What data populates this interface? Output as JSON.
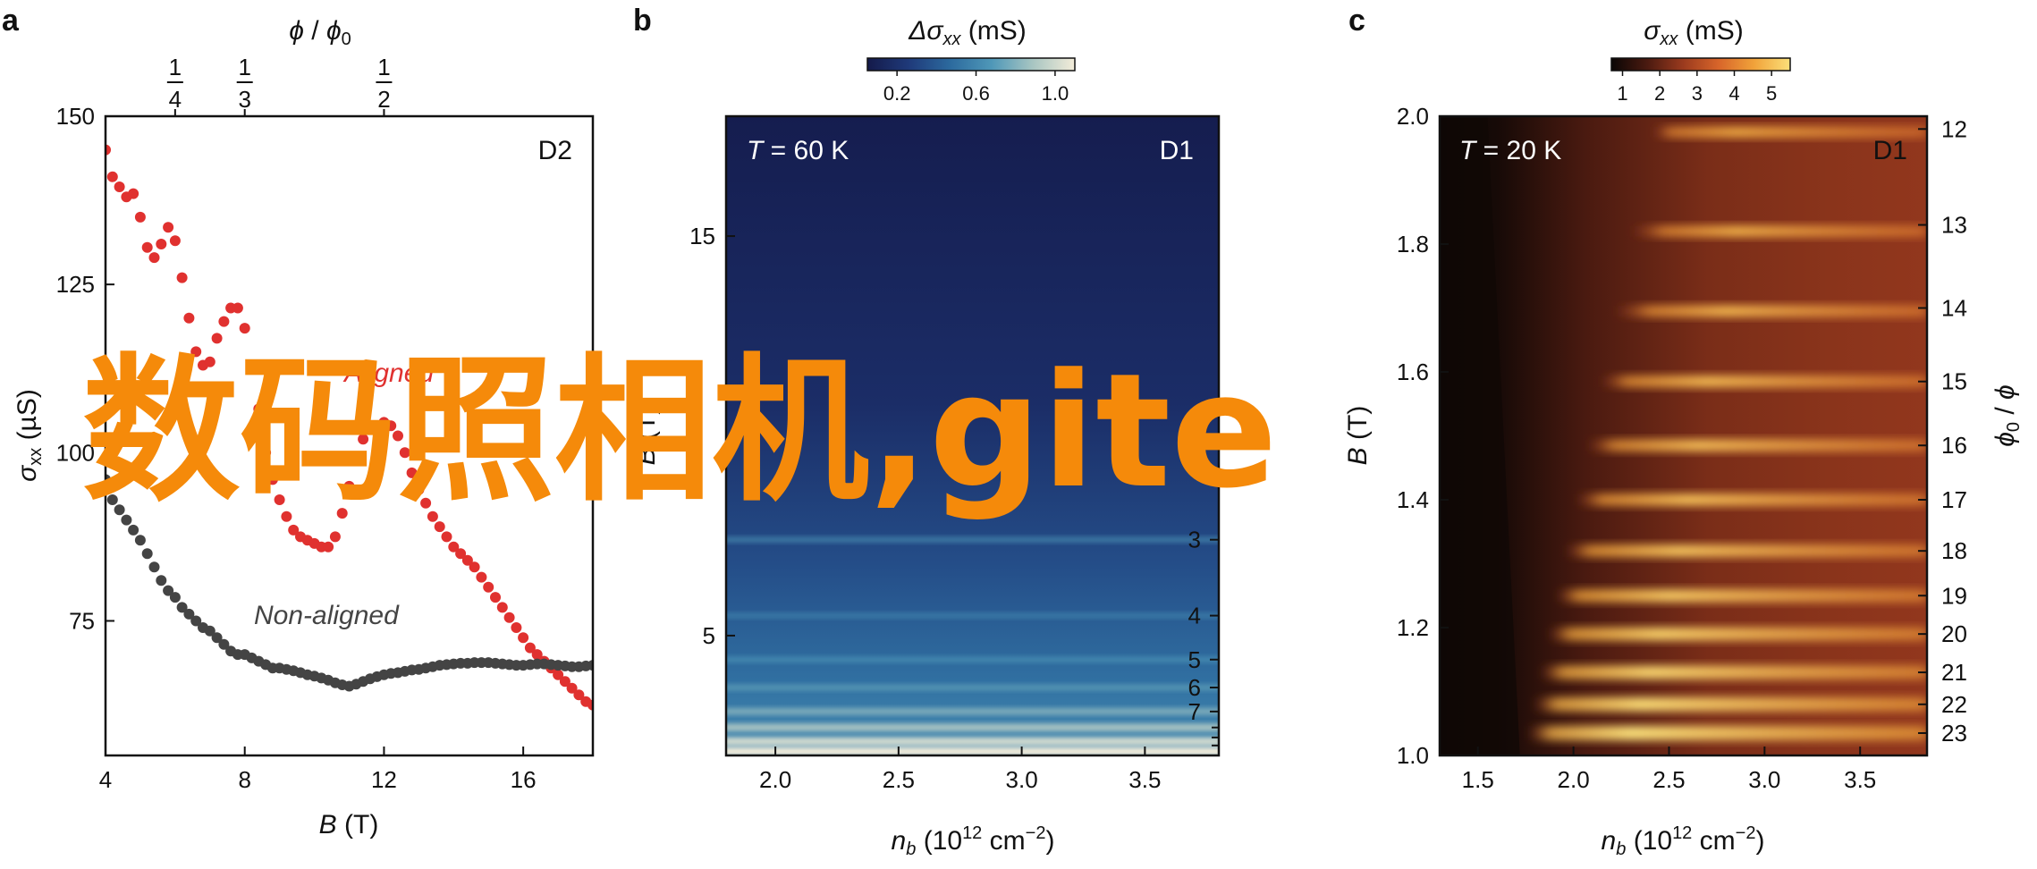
{
  "chart_data": [
    {
      "panel": "a",
      "type": "scatter",
      "xlabel": "B (T)",
      "ylabel": "σxx (µS)",
      "top_axis_label": "ϕ / ϕ0",
      "xlim": [
        4,
        18
      ],
      "ylim": [
        55,
        150
      ],
      "x_ticks": [
        4,
        8,
        12,
        16
      ],
      "y_ticks": [
        75,
        100,
        125,
        150
      ],
      "top_ticks": [
        {
          "label": "1/4",
          "num": "1",
          "den": "4",
          "B": 6
        },
        {
          "label": "1/3",
          "num": "1",
          "den": "3",
          "B": 8
        },
        {
          "label": "1/2",
          "num": "1",
          "den": "2",
          "B": 12
        }
      ],
      "corner_label": "D2",
      "series": [
        {
          "name": "Aligned",
          "color": "#e0312f",
          "points": [
            [
              4.0,
              145.0
            ],
            [
              4.2,
              141.0
            ],
            [
              4.4,
              139.5
            ],
            [
              4.6,
              138.0
            ],
            [
              4.8,
              138.5
            ],
            [
              5.0,
              135.0
            ],
            [
              5.2,
              130.5
            ],
            [
              5.4,
              129.0
            ],
            [
              5.6,
              131.0
            ],
            [
              5.8,
              133.5
            ],
            [
              6.0,
              131.5
            ],
            [
              6.2,
              126.0
            ],
            [
              6.4,
              120.0
            ],
            [
              6.6,
              115.0
            ],
            [
              6.8,
              113.0
            ],
            [
              7.0,
              113.5
            ],
            [
              7.2,
              117.0
            ],
            [
              7.4,
              119.5
            ],
            [
              7.6,
              121.5
            ],
            [
              7.8,
              121.5
            ],
            [
              8.0,
              118.5
            ],
            [
              8.2,
              113.0
            ],
            [
              8.4,
              106.5
            ],
            [
              8.6,
              100.0
            ],
            [
              8.8,
              96.0
            ],
            [
              9.0,
              93.0
            ],
            [
              9.2,
              90.5
            ],
            [
              9.4,
              88.5
            ],
            [
              9.6,
              87.5
            ],
            [
              9.8,
              87.0
            ],
            [
              10.0,
              86.5
            ],
            [
              10.2,
              86.0
            ],
            [
              10.4,
              86.0
            ],
            [
              10.6,
              87.5
            ],
            [
              10.8,
              91.0
            ],
            [
              11.0,
              95.0
            ],
            [
              11.2,
              99.0
            ],
            [
              11.4,
              102.0
            ],
            [
              11.6,
              103.5
            ],
            [
              11.8,
              104.0
            ],
            [
              12.0,
              104.5
            ],
            [
              12.2,
              104.0
            ],
            [
              12.4,
              102.5
            ],
            [
              12.6,
              100.0
            ],
            [
              12.8,
              97.0
            ],
            [
              13.0,
              94.5
            ],
            [
              13.2,
              92.5
            ],
            [
              13.4,
              90.5
            ],
            [
              13.6,
              89.0
            ],
            [
              13.8,
              87.5
            ],
            [
              14.0,
              86.0
            ],
            [
              14.2,
              85.0
            ],
            [
              14.4,
              84.0
            ],
            [
              14.6,
              83.0
            ],
            [
              14.8,
              81.5
            ],
            [
              15.0,
              80.0
            ],
            [
              15.2,
              78.5
            ],
            [
              15.4,
              77.0
            ],
            [
              15.6,
              75.5
            ],
            [
              15.8,
              74.0
            ],
            [
              16.0,
              72.5
            ],
            [
              16.2,
              71.0
            ],
            [
              16.4,
              70.0
            ],
            [
              16.6,
              69.0
            ],
            [
              16.8,
              68.0
            ],
            [
              17.0,
              67.0
            ],
            [
              17.2,
              66.0
            ],
            [
              17.4,
              65.0
            ],
            [
              17.6,
              64.0
            ],
            [
              17.8,
              63.0
            ],
            [
              18.0,
              62.5
            ]
          ]
        },
        {
          "name": "Non-aligned",
          "color": "#444444",
          "points": [
            [
              4.0,
              96.0
            ],
            [
              4.2,
              93.0
            ],
            [
              4.4,
              91.5
            ],
            [
              4.6,
              90.0
            ],
            [
              4.8,
              88.5
            ],
            [
              5.0,
              87.0
            ],
            [
              5.2,
              85.0
            ],
            [
              5.4,
              83.0
            ],
            [
              5.6,
              81.0
            ],
            [
              5.8,
              79.5
            ],
            [
              6.0,
              78.5
            ],
            [
              6.2,
              77.0
            ],
            [
              6.4,
              76.0
            ],
            [
              6.6,
              75.0
            ],
            [
              6.8,
              74.0
            ],
            [
              7.0,
              73.5
            ],
            [
              7.2,
              72.5
            ],
            [
              7.4,
              71.5
            ],
            [
              7.6,
              70.5
            ],
            [
              7.8,
              70.0
            ],
            [
              8.0,
              70.0
            ],
            [
              8.2,
              69.5
            ],
            [
              8.4,
              69.0
            ],
            [
              8.6,
              68.5
            ],
            [
              8.8,
              68.0
            ],
            [
              9.0,
              68.0
            ],
            [
              9.2,
              67.8
            ],
            [
              9.4,
              67.6
            ],
            [
              9.6,
              67.3
            ],
            [
              9.8,
              67.0
            ],
            [
              10.0,
              66.8
            ],
            [
              10.2,
              66.5
            ],
            [
              10.4,
              66.2
            ],
            [
              10.6,
              65.8
            ],
            [
              10.8,
              65.5
            ],
            [
              11.0,
              65.3
            ],
            [
              11.2,
              65.6
            ],
            [
              11.4,
              66.0
            ],
            [
              11.6,
              66.4
            ],
            [
              11.8,
              66.7
            ],
            [
              12.0,
              67.0
            ],
            [
              12.2,
              67.2
            ],
            [
              12.4,
              67.3
            ],
            [
              12.6,
              67.5
            ],
            [
              12.8,
              67.7
            ],
            [
              13.0,
              67.8
            ],
            [
              13.2,
              68.0
            ],
            [
              13.4,
              68.2
            ],
            [
              13.6,
              68.4
            ],
            [
              13.8,
              68.5
            ],
            [
              14.0,
              68.6
            ],
            [
              14.2,
              68.7
            ],
            [
              14.4,
              68.7
            ],
            [
              14.6,
              68.8
            ],
            [
              14.8,
              68.8
            ],
            [
              15.0,
              68.8
            ],
            [
              15.2,
              68.7
            ],
            [
              15.4,
              68.6
            ],
            [
              15.6,
              68.5
            ],
            [
              15.8,
              68.4
            ],
            [
              16.0,
              68.4
            ],
            [
              16.2,
              68.5
            ],
            [
              16.4,
              68.6
            ],
            [
              16.6,
              68.6
            ],
            [
              16.8,
              68.5
            ],
            [
              17.0,
              68.4
            ],
            [
              17.2,
              68.3
            ],
            [
              17.4,
              68.2
            ],
            [
              17.6,
              68.2
            ],
            [
              17.8,
              68.3
            ],
            [
              18.0,
              68.4
            ]
          ]
        }
      ]
    },
    {
      "panel": "b",
      "type": "heatmap",
      "xlabel": "nb (1012 cm−2)",
      "ylabel": "B (T)",
      "right_axis_label": "ϕ0 / ϕ",
      "xlim": [
        1.8,
        3.8
      ],
      "ylim": [
        2,
        18
      ],
      "x_ticks": [
        2.0,
        2.5,
        3.0,
        3.5
      ],
      "y_ticks": [
        5,
        15
      ],
      "right_ticks": [
        {
          "label": "2",
          "B": 9.7
        },
        {
          "label": "3",
          "B": 7.4
        },
        {
          "label": "4",
          "B": 5.5
        },
        {
          "label": "5",
          "B": 4.4
        },
        {
          "label": "6",
          "B": 3.7
        },
        {
          "label": "7",
          "B": 3.1
        }
      ],
      "corner_label": "D1",
      "temperature_label": "T = 60 K",
      "colorbar": {
        "title": "Δσxx (mS)",
        "ticks": [
          0.2,
          0.6,
          1.0
        ],
        "range": [
          0.05,
          1.1
        ],
        "colors": [
          "#141a4a",
          "#1f3a7a",
          "#2c6a9e",
          "#4f98b8",
          "#a9c6c2",
          "#f3ecd9"
        ]
      },
      "bands": [
        {
          "B": 7.4,
          "intensity": 0.35
        },
        {
          "B": 5.5,
          "intensity": 0.3
        },
        {
          "B": 4.4,
          "intensity": 0.38
        },
        {
          "B": 3.7,
          "intensity": 0.45
        },
        {
          "B": 3.1,
          "intensity": 0.6
        },
        {
          "B": 2.7,
          "intensity": 0.75
        },
        {
          "B": 2.35,
          "intensity": 0.9
        },
        {
          "B": 2.1,
          "intensity": 1.0
        }
      ]
    },
    {
      "panel": "c",
      "type": "heatmap",
      "xlabel": "nb (1012 cm−2)",
      "ylabel": "B (T)",
      "right_axis_label": "ϕ0 / ϕ",
      "xlim": [
        1.3,
        3.85
      ],
      "ylim": [
        1.0,
        2.0
      ],
      "x_ticks": [
        1.5,
        2.0,
        2.5,
        3.0,
        3.5
      ],
      "y_ticks": [
        1.0,
        1.2,
        1.4,
        1.6,
        1.8,
        2.0
      ],
      "right_ticks": [
        {
          "label": "12",
          "B": 1.98
        },
        {
          "label": "13",
          "B": 1.83
        },
        {
          "label": "14",
          "B": 1.7
        },
        {
          "label": "15",
          "B": 1.585
        },
        {
          "label": "16",
          "B": 1.485
        },
        {
          "label": "17",
          "B": 1.4
        },
        {
          "label": "18",
          "B": 1.32
        },
        {
          "label": "19",
          "B": 1.25
        },
        {
          "label": "20",
          "B": 1.19
        },
        {
          "label": "21",
          "B": 1.13
        },
        {
          "label": "22",
          "B": 1.08
        },
        {
          "label": "23",
          "B": 1.035
        }
      ],
      "corner_label": "D1",
      "temperature_label": "T = 20 K",
      "colorbar": {
        "title": "σxx (mS)",
        "ticks": [
          1,
          2,
          3,
          4,
          5
        ],
        "range": [
          0.7,
          5.5
        ],
        "colors": [
          "#0a0605",
          "#4a1a10",
          "#9a3a1e",
          "#d8652a",
          "#f1a33a",
          "#fbe07a"
        ]
      },
      "bands": [
        {
          "B": 1.975,
          "x_center": 2.85,
          "intensity": 0.55
        },
        {
          "B": 1.82,
          "x_center": 2.85,
          "intensity": 0.6
        },
        {
          "B": 1.695,
          "x_center": 2.8,
          "intensity": 0.65
        },
        {
          "B": 1.585,
          "x_center": 2.7,
          "intensity": 0.68
        },
        {
          "B": 1.485,
          "x_center": 2.65,
          "intensity": 0.7
        },
        {
          "B": 1.4,
          "x_center": 2.6,
          "intensity": 0.72
        },
        {
          "B": 1.32,
          "x_center": 2.55,
          "intensity": 0.76
        },
        {
          "B": 1.25,
          "x_center": 2.5,
          "intensity": 0.8
        },
        {
          "B": 1.19,
          "x_center": 2.45,
          "intensity": 0.85
        },
        {
          "B": 1.13,
          "x_center": 2.4,
          "intensity": 0.9
        },
        {
          "B": 1.08,
          "x_center": 2.35,
          "intensity": 0.95
        },
        {
          "B": 1.035,
          "x_center": 2.3,
          "intensity": 1.0
        }
      ]
    }
  ],
  "panels": {
    "a": {
      "letter": "a",
      "top_axis": {
        "phi": "ϕ",
        "slash": " / ",
        "sub": "0"
      },
      "ylabel": {
        "sym": "σ",
        "sub": "xx",
        "unit": " (µS)"
      },
      "xlabel": {
        "sym": "B",
        "unit": " (T)"
      },
      "corner": "D2",
      "curve_aligned": "Aligned",
      "curve_nonaligned": "Non-aligned"
    },
    "b": {
      "letter": "b",
      "colorbar_title": {
        "sym": "Δσ",
        "sub": "xx",
        "unit": " (mS)"
      },
      "temperature": {
        "sym": "T",
        "rest": " = 60 K"
      },
      "corner": "D1",
      "ylabel": {
        "sym": "B",
        "unit": " (T)"
      },
      "xlabel": {
        "sym": "n",
        "sub": "b",
        "rest": " (10",
        "sup": "12",
        "rest2": " cm",
        "sup2": "−2",
        "rest3": ")"
      }
    },
    "c": {
      "letter": "c",
      "colorbar_title": {
        "sym": "σ",
        "sub": "xx",
        "unit": " (mS)"
      },
      "temperature": {
        "sym": "T",
        "rest": " = 20 K"
      },
      "corner": "D1",
      "ylabel": {
        "sym": "B",
        "unit": " (T)"
      },
      "right_label": {
        "phi0": "ϕ",
        "sub": "0",
        "slash": " / ",
        "phi": "ϕ"
      },
      "xlabel": {
        "sym": "n",
        "sub": "b",
        "rest": " (10",
        "sup": "12",
        "rest2": " cm",
        "sup2": "−2",
        "rest3": ")"
      }
    }
  },
  "watermark": "数码照相机,gite"
}
